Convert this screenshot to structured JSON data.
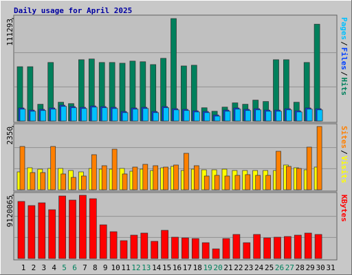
{
  "chart_data": [
    {
      "type": "bar",
      "title": "Daily usage for April 2025",
      "categories": [
        1,
        2,
        3,
        4,
        5,
        6,
        7,
        8,
        9,
        10,
        11,
        12,
        13,
        14,
        15,
        16,
        17,
        18,
        19,
        20,
        21,
        22,
        23,
        24,
        25,
        26,
        27,
        28,
        29,
        30,
        31
      ],
      "category_colors": [
        "#000000",
        "#000000",
        "#000000",
        "#000000",
        "#00805c",
        "#00805c",
        "#000000",
        "#000000",
        "#000000",
        "#000000",
        "#000000",
        "#00805c",
        "#00805c",
        "#000000",
        "#000000",
        "#000000",
        "#000000",
        "#000000",
        "#00805c",
        "#00805c",
        "#000000",
        "#000000",
        "#000000",
        "#000000",
        "#000000",
        "#00805c",
        "#00805c",
        "#000000",
        "#000000",
        "#000000",
        "#000000"
      ],
      "legend_separator": "/",
      "ylim": [
        0,
        111293
      ],
      "yticks": [
        111293
      ],
      "series": [
        {
          "name": "Pages",
          "color": "#00c0ff",
          "values": [
            12900,
            10600,
            11400,
            12900,
            15900,
            14400,
            13600,
            15100,
            14400,
            13600,
            9100,
            12900,
            13600,
            9100,
            14400,
            12100,
            11400,
            9800,
            9100,
            5300,
            10600,
            12900,
            11400,
            12100,
            10600,
            10600,
            12100,
            9800,
            12900,
            12100,
            null
          ]
        },
        {
          "name": "Files",
          "color": "#0040ff",
          "values": [
            14200,
            11900,
            12700,
            14200,
            17200,
            15700,
            14900,
            16400,
            15700,
            14900,
            10400,
            14200,
            14900,
            10400,
            15700,
            13400,
            12700,
            11100,
            10400,
            6600,
            11900,
            14200,
            12700,
            13400,
            11900,
            11900,
            13400,
            11100,
            14200,
            13400,
            null
          ]
        },
        {
          "name": "Hits",
          "color": "#00805c",
          "values": [
            59000,
            59000,
            18200,
            63600,
            20400,
            18900,
            66600,
            67400,
            63600,
            63600,
            62800,
            65100,
            64400,
            61300,
            68100,
            111293,
            59800,
            60600,
            14400,
            10600,
            15100,
            19700,
            18200,
            22700,
            21200,
            66600,
            66600,
            20400,
            63600,
            105200,
            null
          ]
        }
      ]
    },
    {
      "type": "bar",
      "ylim": [
        0,
        2350
      ],
      "yticks": [
        2350
      ],
      "series": [
        {
          "name": "Sites",
          "color": "#ff8000",
          "values": [
            1609,
            639,
            639,
            1609,
            588,
            460,
            511,
            1303,
            894,
            1507,
            588,
            843,
            945,
            894,
            843,
            920,
            1354,
            894,
            511,
            536,
            511,
            536,
            562,
            536,
            536,
            1430,
            869,
            792,
            1584,
            2350,
            null
          ]
        },
        {
          "name": "Visits",
          "color": "#ffff00",
          "values": [
            664,
            817,
            766,
            792,
            792,
            715,
            664,
            792,
            766,
            766,
            792,
            690,
            766,
            715,
            817,
            869,
            715,
            766,
            741,
            741,
            766,
            715,
            715,
            715,
            715,
            715,
            920,
            817,
            741,
            843,
            null
          ]
        }
      ]
    },
    {
      "type": "bar",
      "ylim": [
        0,
        9120065
      ],
      "yticks": [
        9120065
      ],
      "series": [
        {
          "name": "KBytes",
          "color": "#ff0000",
          "values": [
            8228000,
            7633000,
            8030000,
            7038000,
            9021000,
            8426000,
            9120065,
            8624000,
            4857000,
            3866000,
            2577000,
            3370000,
            3668000,
            2478000,
            4064000,
            3073000,
            2974000,
            2875000,
            2280000,
            1388000,
            2875000,
            3469000,
            2280000,
            3469000,
            2974000,
            3073000,
            3172000,
            3370000,
            3668000,
            3469000,
            null
          ]
        }
      ]
    }
  ]
}
